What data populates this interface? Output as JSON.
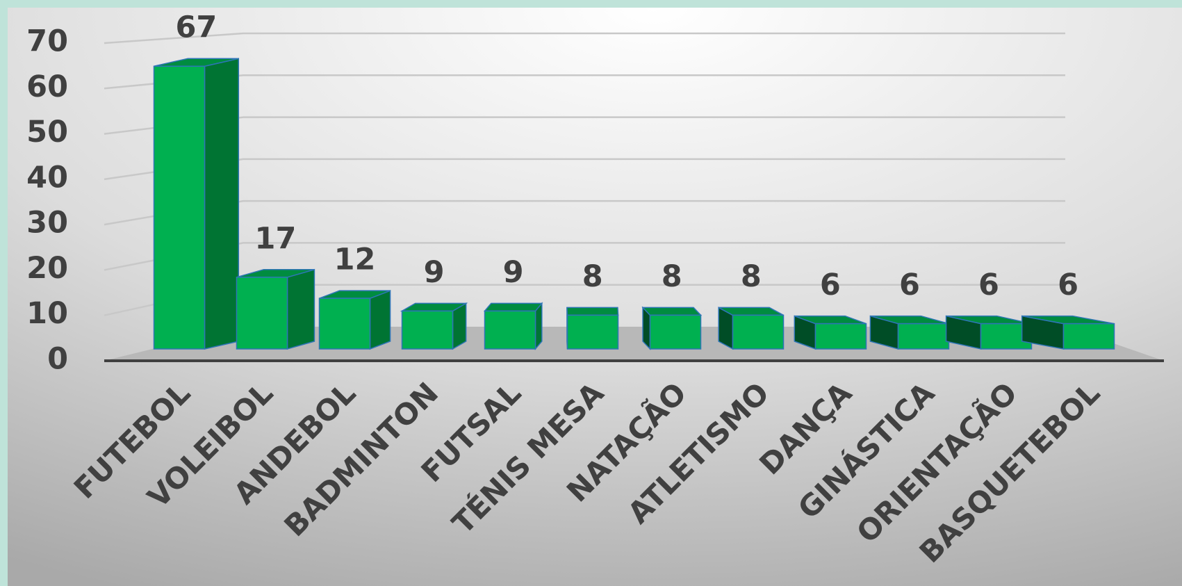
{
  "chart_data": {
    "type": "bar3d",
    "categories": [
      "FUTEBOL",
      "VOLEIBOL",
      "ANDEBOL",
      "BADMINTON",
      "FUTSAL",
      "TÉNIS MESA",
      "NATAÇÃO",
      "ATLETISMO",
      "DANÇA",
      "GINÁSTICA",
      "ORIENTAÇÃO",
      "BASQUETEBOL"
    ],
    "values": [
      67,
      17,
      12,
      9,
      9,
      8,
      8,
      8,
      6,
      6,
      6,
      6
    ],
    "color": "#00b050",
    "ylim": [
      0,
      70
    ],
    "yticks": [
      0,
      10,
      20,
      30,
      40,
      50,
      60,
      70
    ],
    "grid": true
  }
}
